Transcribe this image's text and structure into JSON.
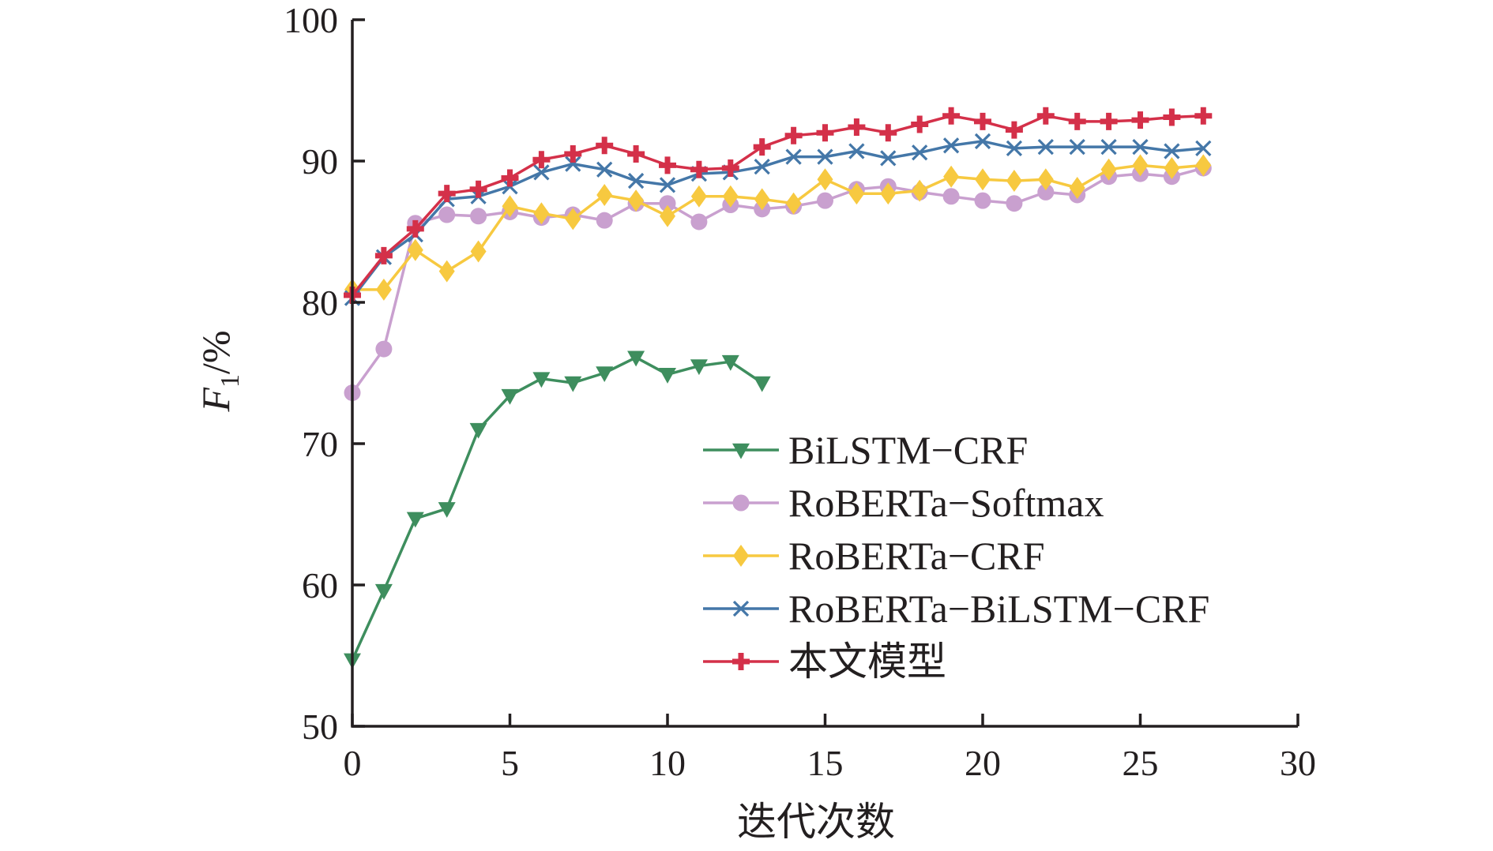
{
  "chart_data": {
    "type": "line",
    "title": "",
    "xlabel": "迭代次数",
    "ylabel": {
      "var": "F",
      "sub": "1",
      "suffix": "/%"
    },
    "xlim": [
      0,
      30
    ],
    "ylim": [
      50,
      100
    ],
    "xticks": [
      0,
      5,
      10,
      15,
      20,
      25,
      30
    ],
    "yticks": [
      50,
      60,
      70,
      80,
      90,
      100
    ],
    "legend_position": "lower-right",
    "series": [
      {
        "name": "BiLSTM−CRF",
        "color": "#3e8e5e",
        "marker": "triangle-down",
        "x": [
          0,
          1,
          2,
          3,
          4,
          5,
          6,
          7,
          8,
          9,
          10,
          11,
          12,
          13
        ],
        "y": [
          54.7,
          59.6,
          64.7,
          65.4,
          71.0,
          73.4,
          74.6,
          74.3,
          75.0,
          76.1,
          74.9,
          75.5,
          75.8,
          74.3
        ]
      },
      {
        "name": "RoBERTa−Softmax",
        "color": "#c9a0cf",
        "marker": "circle",
        "x": [
          0,
          1,
          2,
          3,
          4,
          5,
          6,
          7,
          8,
          9,
          10,
          11,
          12,
          13,
          14,
          15,
          16,
          17,
          18,
          19,
          20,
          21,
          22,
          23,
          24,
          25,
          26,
          27
        ],
        "y": [
          73.6,
          76.7,
          85.6,
          86.2,
          86.1,
          86.4,
          86.0,
          86.2,
          85.8,
          87.0,
          87.0,
          85.7,
          86.9,
          86.6,
          86.8,
          87.2,
          88.0,
          88.2,
          87.8,
          87.5,
          87.2,
          87.0,
          87.8,
          87.6,
          88.9,
          89.1,
          88.9,
          89.5
        ]
      },
      {
        "name": "RoBERTa−CRF",
        "color": "#f7c940",
        "marker": "diamond",
        "x": [
          0,
          1,
          2,
          3,
          4,
          5,
          6,
          7,
          8,
          9,
          10,
          11,
          12,
          13,
          14,
          15,
          16,
          17,
          18,
          19,
          20,
          21,
          22,
          23,
          24,
          25,
          26,
          27
        ],
        "y": [
          80.9,
          80.9,
          83.7,
          82.2,
          83.6,
          86.8,
          86.3,
          85.9,
          87.6,
          87.2,
          86.1,
          87.5,
          87.5,
          87.3,
          87.0,
          88.7,
          87.7,
          87.7,
          87.9,
          88.9,
          88.7,
          88.6,
          88.7,
          88.1,
          89.4,
          89.7,
          89.5,
          89.7
        ]
      },
      {
        "name": "RoBERTa−BiLSTM−CRF",
        "color": "#4477a8",
        "marker": "x",
        "x": [
          0,
          1,
          2,
          3,
          4,
          5,
          6,
          7,
          8,
          9,
          10,
          11,
          12,
          13,
          14,
          15,
          16,
          17,
          18,
          19,
          20,
          21,
          22,
          23,
          24,
          25,
          26,
          27
        ],
        "y": [
          80.3,
          83.2,
          84.8,
          87.3,
          87.5,
          88.2,
          89.2,
          89.8,
          89.4,
          88.6,
          88.3,
          89.1,
          89.2,
          89.6,
          90.3,
          90.3,
          90.7,
          90.2,
          90.6,
          91.1,
          91.4,
          90.9,
          91.0,
          91.0,
          91.0,
          91.0,
          90.7,
          90.9
        ]
      },
      {
        "name": "本文模型",
        "color": "#d43049",
        "marker": "plus",
        "x": [
          0,
          1,
          2,
          3,
          4,
          5,
          6,
          7,
          8,
          9,
          10,
          11,
          12,
          13,
          14,
          15,
          16,
          17,
          18,
          19,
          20,
          21,
          22,
          23,
          24,
          25,
          26,
          27
        ],
        "y": [
          80.5,
          83.3,
          85.2,
          87.7,
          88.0,
          88.8,
          90.1,
          90.5,
          91.1,
          90.5,
          89.7,
          89.4,
          89.5,
          91.0,
          91.8,
          92.0,
          92.4,
          92.0,
          92.6,
          93.2,
          92.8,
          92.2,
          93.2,
          92.8,
          92.8,
          92.9,
          93.1,
          93.2
        ]
      }
    ]
  }
}
